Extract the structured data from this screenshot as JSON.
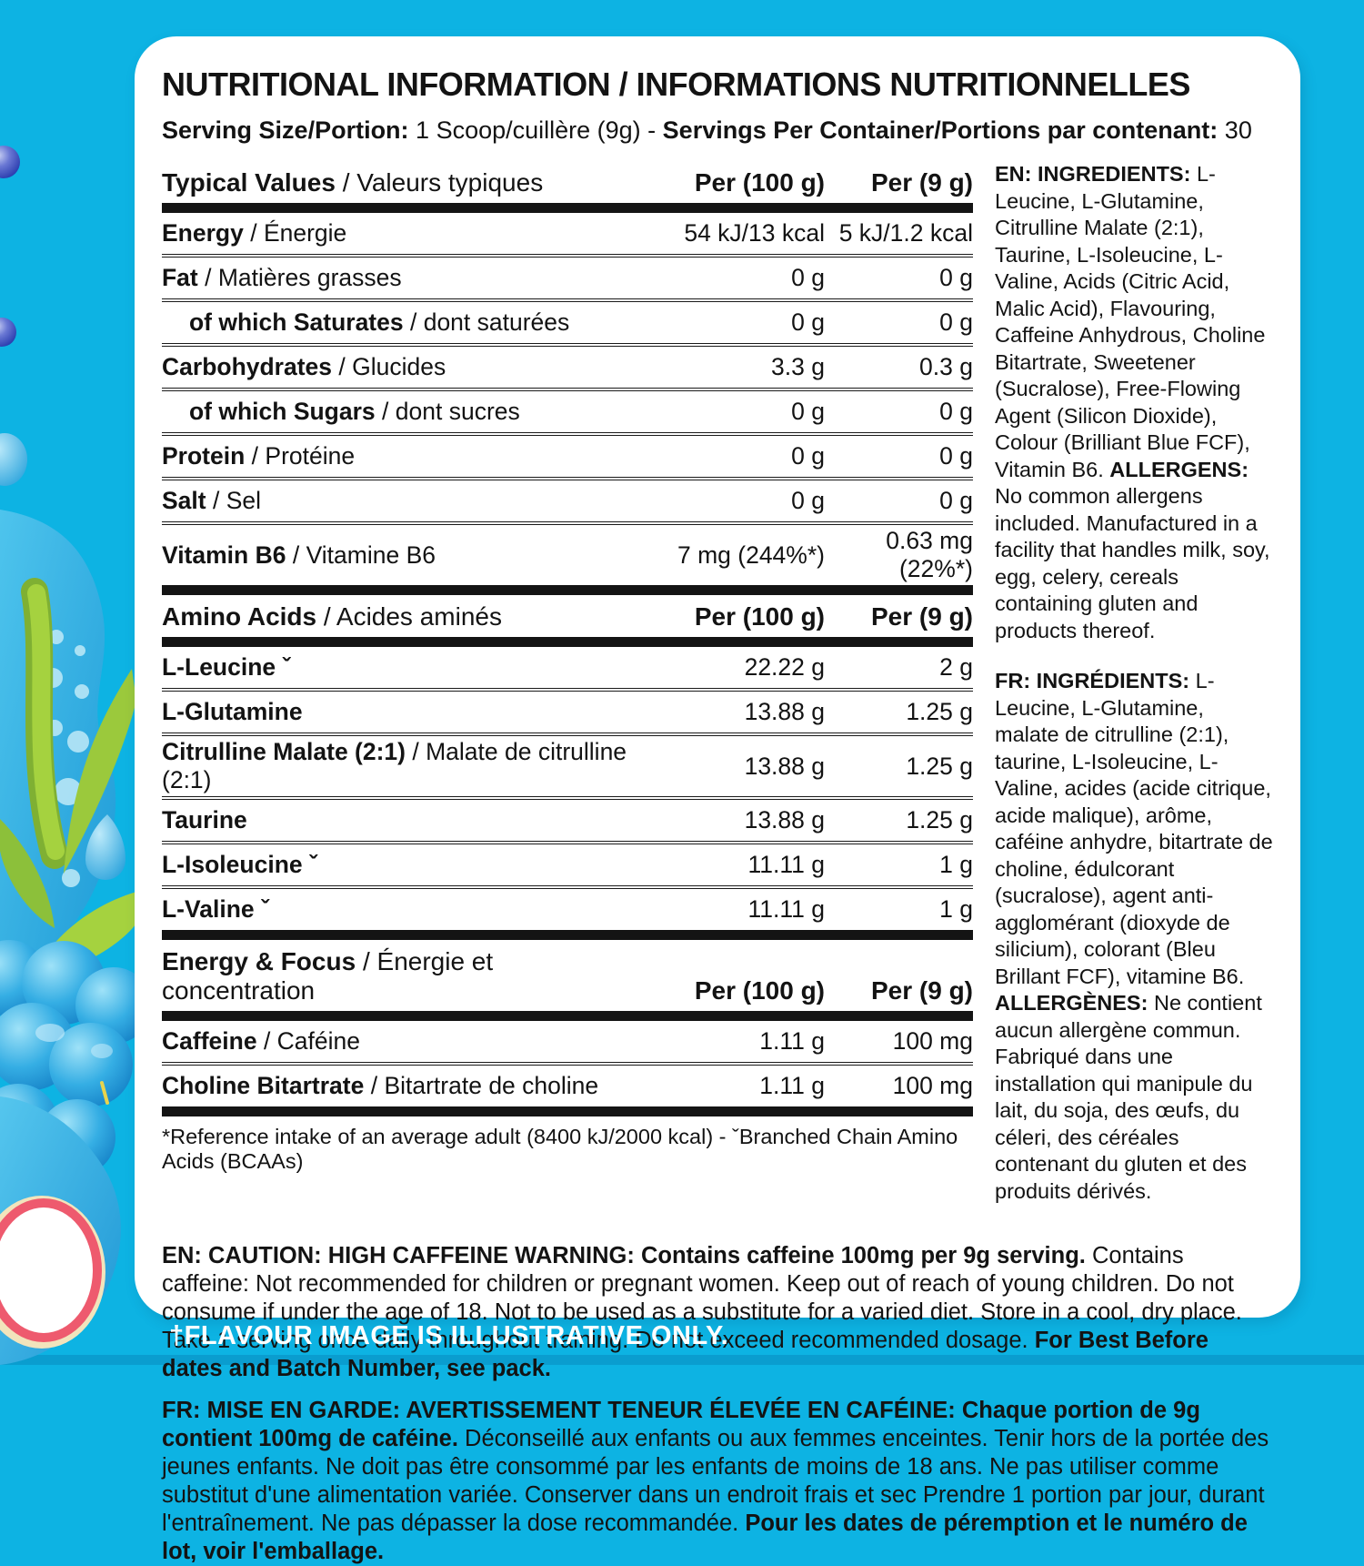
{
  "page": {
    "background_color": "#0db3e3",
    "panel_color": "#ffffff",
    "footer_note": "†FLAVOUR IMAGE IS ILLUSTRATIVE ONLY."
  },
  "header": {
    "title": "NUTRITIONAL INFORMATION / INFORMATIONS NUTRITIONNELLES",
    "serving_segments": [
      {
        "b": true,
        "t": "Serving Size/Portion: "
      },
      {
        "b": false,
        "t": "1 Scoop/cuillère (9g) - "
      },
      {
        "b": true,
        "t": "Servings Per Container/Portions par contenant: "
      },
      {
        "b": false,
        "t": "30"
      }
    ]
  },
  "nutrition": {
    "header": {
      "en": "Typical Values",
      "fr": "/ Valeurs typiques",
      "col1": "Per (100 g)",
      "col2": "Per (9 g)"
    },
    "rows": [
      {
        "en": "Energy",
        "fr": "/ Énergie",
        "v100": "54 kJ/13 kcal",
        "v9": "5 kJ/1.2 kcal"
      },
      {
        "en": "Fat",
        "fr": "/ Matières grasses",
        "v100": "0 g",
        "v9": "0 g"
      },
      {
        "en": "of which Saturates",
        "fr": "/ dont saturées",
        "v100": "0 g",
        "v9": "0 g",
        "indent": true
      },
      {
        "en": "Carbohydrates",
        "fr": "/ Glucides",
        "v100": "3.3 g",
        "v9": "0.3 g"
      },
      {
        "en": "of which Sugars",
        "fr": "/ dont sucres",
        "v100": "0 g",
        "v9": "0 g",
        "indent": true
      },
      {
        "en": "Protein",
        "fr": "/ Protéine",
        "v100": "0 g",
        "v9": "0 g"
      },
      {
        "en": "Salt",
        "fr": "/ Sel",
        "v100": "0 g",
        "v9": "0 g"
      },
      {
        "en": "Vitamin B6",
        "fr": "/ Vitamine B6",
        "v100": "7 mg (244%*)",
        "v9": "0.63 mg (22%*)"
      }
    ]
  },
  "amino": {
    "header": {
      "en": "Amino Acids",
      "fr": "/ Acides aminés",
      "col1": "Per (100 g)",
      "col2": "Per (9 g)"
    },
    "rows": [
      {
        "en": "L-Leucine ˇ",
        "fr": "",
        "v100": "22.22 g",
        "v9": "2 g"
      },
      {
        "en": "L-Glutamine",
        "fr": "",
        "v100": "13.88 g",
        "v9": "1.25 g"
      },
      {
        "en": "Citrulline Malate (2:1)",
        "fr": "/ Malate de citrulline (2:1)",
        "v100": "13.88 g",
        "v9": "1.25 g"
      },
      {
        "en": "Taurine",
        "fr": "",
        "v100": "13.88 g",
        "v9": "1.25 g"
      },
      {
        "en": "L-Isoleucine ˇ",
        "fr": "",
        "v100": "11.11 g",
        "v9": "1 g"
      },
      {
        "en": "L-Valine ˇ",
        "fr": "",
        "v100": "11.11 g",
        "v9": "1 g"
      }
    ]
  },
  "focus": {
    "header": {
      "en": "Energy & Focus",
      "fr": "/ Énergie et concentration",
      "col1": "Per (100 g)",
      "col2": "Per (9 g)"
    },
    "rows": [
      {
        "en": "Caffeine",
        "fr": "/ Caféine",
        "v100": "1.11 g",
        "v9": "100 mg"
      },
      {
        "en": "Choline Bitartrate",
        "fr": "/ Bitartrate de choline",
        "v100": "1.11 g",
        "v9": "100 mg"
      }
    ]
  },
  "footnote": "*Reference intake of an average adult (8400 kJ/2000 kcal) - ˇBranched Chain Amino Acids (BCAAs)",
  "ingredients_en": {
    "segments": [
      {
        "b": true,
        "t": "EN: INGREDIENTS: "
      },
      {
        "b": false,
        "t": "L-Leucine, L-Glutamine, Citrulline Malate (2:1), Taurine, L-Isoleucine, L-Valine, Acids (Citric Acid, Malic Acid), Flavouring, Caffeine Anhydrous, Choline Bitartrate, Sweetener (Sucralose), Free-Flowing Agent (Silicon Dioxide), Colour (Brilliant Blue FCF), Vitamin B6. "
      },
      {
        "b": true,
        "t": "ALLERGENS: "
      },
      {
        "b": false,
        "t": "No common allergens included. Manufactured in a facility that handles milk, soy, egg, celery, cereals containing gluten and products thereof."
      }
    ]
  },
  "ingredients_fr": {
    "segments": [
      {
        "b": true,
        "t": "FR: INGRÉDIENTS: "
      },
      {
        "b": false,
        "t": "L-Leucine, L-Glutamine, malate de citrulline (2:1), taurine, L-Isoleucine, L-Valine, acides (acide citrique, acide malique), arôme, caféine anhydre, bitartrate de choline, édulcorant (sucralose), agent anti-agglomérant (dioxyde de silicium), colorant (Bleu Brillant FCF), vitamine B6. "
      },
      {
        "b": true,
        "t": "ALLERGÈNES: "
      },
      {
        "b": false,
        "t": "Ne contient aucun allergène commun. Fabriqué dans une installation qui manipule du lait, du soja, des œufs, du céleri, des céréales contenant du gluten et des produits dérivés."
      }
    ]
  },
  "caution_en": {
    "segments": [
      {
        "b": true,
        "t": "EN: CAUTION: HIGH CAFFEINE WARNING: Contains caffeine 100mg per 9g serving. "
      },
      {
        "b": false,
        "t": "Contains caffeine: Not recommended for children or pregnant women. Keep out of reach of young children. Do not consume if under the age of 18. Not to be used as a substitute for a varied diet. Store in a cool, dry place. Take 1 serving once daily throughout training. Do not exceed recommended dosage. "
      },
      {
        "b": true,
        "t": "For Best Before dates and Batch Number, see pack."
      }
    ]
  },
  "caution_fr": {
    "segments": [
      {
        "b": true,
        "t": "FR: MISE EN GARDE: AVERTISSEMENT TENEUR ÉLEVÉE EN CAFÉINE: Chaque portion de 9g contient 100mg de caféine. "
      },
      {
        "b": false,
        "t": "Déconseillé aux enfants ou aux femmes enceintes. Tenir hors de la portée des jeunes enfants. Ne doit pas être consommé par les enfants de moins de 18 ans. Ne pas utiliser comme substitut d'une alimentation variée. Conserver dans un endroit frais et sec Prendre 1 portion par jour, durant l'entraînement. Ne pas dépasser la dose recommandée. "
      },
      {
        "b": true,
        "t": "Pour les dates de péremption et le numéro de lot, voir l'emballage."
      }
    ]
  }
}
